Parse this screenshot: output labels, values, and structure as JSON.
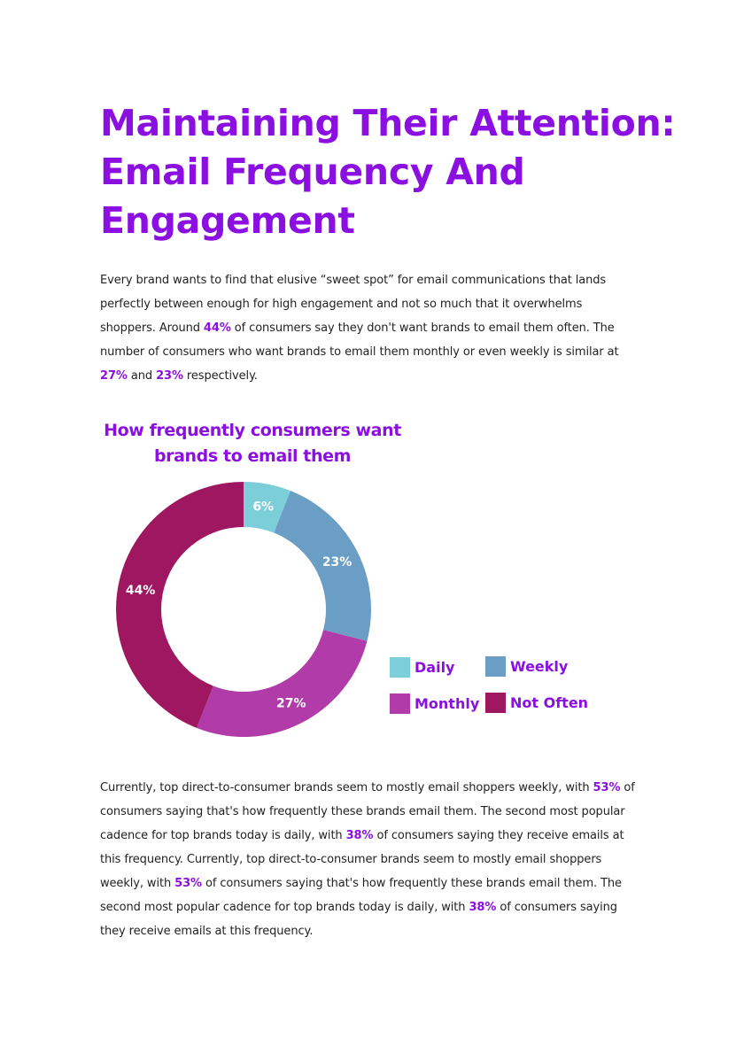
{
  "title": "Maintaining Their Attention: Email Frequency And Engagement",
  "intro": {
    "t1": "Every brand wants to find that elusive “sweet spot” for email communications that lands perfectly between enough for high engagement and not so much that it overwhelms shoppers. Around ",
    "h1": "44%",
    "t2": " of consumers say they don't want brands to email them often. The number of consumers who want brands to email them monthly or even weekly is similar at ",
    "h2": "27%",
    "t3": " and ",
    "h3": "23%",
    "t4": " respectively."
  },
  "chart_data": {
    "type": "pie",
    "title": "How frequently consumers want brands to email them",
    "donut": true,
    "categories": [
      "Daily",
      "Weekly",
      "Monthly",
      "Not Often"
    ],
    "values": [
      6,
      23,
      27,
      44
    ],
    "labels": [
      "6%",
      "23%",
      "27%",
      "44%"
    ],
    "colors": [
      "#7ccfd9",
      "#6a9ec5",
      "#b13ca9",
      "#9e1760"
    ],
    "legend_position": "right"
  },
  "closing": {
    "t1": "Currently, top direct-to-consumer brands seem to mostly email shoppers weekly, with ",
    "h1": "53%",
    "t2": " of consumers saying that's how frequently these brands email them. The second most popular cadence for top brands today is daily, with ",
    "h2": "38%",
    "t3": " of consumers saying they receive emails at this frequency. Currently, top direct-to-consumer brands seem to mostly email shoppers weekly, with ",
    "h3": "53%",
    "t4": " of consumers saying that's how frequently these brands email them. The second most popular cadence for top brands today is daily, with ",
    "h4": "38%",
    "t5": " of consumers saying they receive emails at this frequency."
  }
}
